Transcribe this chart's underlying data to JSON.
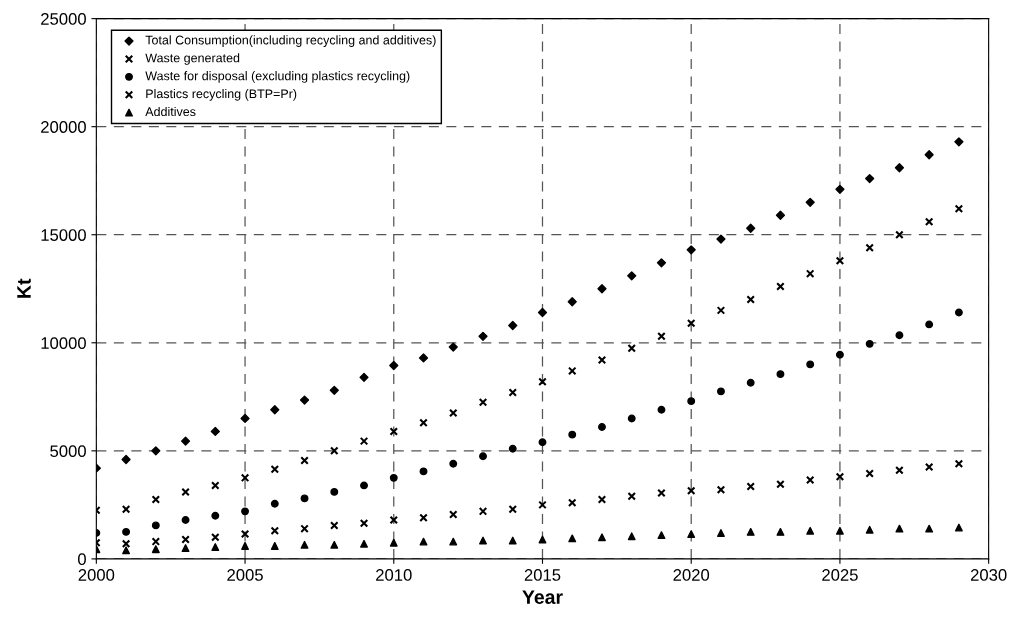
{
  "chart_data": {
    "type": "scatter",
    "xlabel": "Year",
    "ylabel": "Kt",
    "xlim": [
      2000,
      2030
    ],
    "xticks": [
      2000,
      2005,
      2010,
      2015,
      2020,
      2025,
      2030
    ],
    "ylim": [
      0,
      25000
    ],
    "yticks": [
      0,
      5000,
      10000,
      15000,
      20000,
      25000
    ],
    "grid": true,
    "line_style": "dashed",
    "legend": "top left",
    "x": [
      2000,
      2001,
      2002,
      2003,
      2004,
      2005,
      2006,
      2007,
      2008,
      2009,
      2010,
      2011,
      2012,
      2013,
      2014,
      2015,
      2016,
      2017,
      2018,
      2019,
      2020,
      2021,
      2022,
      2023,
      2024,
      2025,
      2026,
      2027,
      2028,
      2029
    ],
    "series": [
      {
        "name": "Total Consumption(including recycling and additives)",
        "color": "#000000",
        "marker": "diamond",
        "values": [
          4200,
          4600,
          5000,
          5450,
          5900,
          6500,
          6900,
          7350,
          7800,
          8400,
          8950,
          9300,
          9800,
          10300,
          10800,
          11400,
          11900,
          12500,
          13100,
          13700,
          14300,
          14800,
          15300,
          15900,
          16500,
          17100,
          17600,
          18100,
          18700,
          19300
        ]
      },
      {
        "name": "Waste generated",
        "color": "#000000",
        "marker": "cross",
        "values": [
          2250,
          2300,
          2750,
          3100,
          3400,
          3750,
          4150,
          4550,
          5000,
          5450,
          5900,
          6300,
          6750,
          7250,
          7700,
          8200,
          8700,
          9200,
          9750,
          10300,
          10900,
          11500,
          12000,
          12600,
          13200,
          13800,
          14400,
          15000,
          15600,
          16200
        ]
      },
      {
        "name": "Waste for disposal (excluding plastics recycling)",
        "color": "#000000",
        "marker": "circle",
        "values": [
          1200,
          1250,
          1550,
          1800,
          2000,
          2200,
          2550,
          2800,
          3100,
          3400,
          3750,
          4050,
          4400,
          4750,
          5100,
          5400,
          5750,
          6100,
          6500,
          6900,
          7300,
          7750,
          8150,
          8550,
          9000,
          9450,
          9950,
          10350,
          10850,
          11400
        ]
      },
      {
        "name": "Plastics recycling (BTP=Pr)",
        "color": "#000000",
        "marker": "cross",
        "values": [
          750,
          700,
          800,
          900,
          1000,
          1150,
          1300,
          1400,
          1550,
          1650,
          1800,
          1900,
          2050,
          2200,
          2300,
          2500,
          2600,
          2750,
          2900,
          3050,
          3150,
          3200,
          3350,
          3450,
          3650,
          3800,
          3950,
          4100,
          4250,
          4400
        ]
      },
      {
        "name": "Additives",
        "color": "#000000",
        "marker": "triangle",
        "values": [
          450,
          400,
          450,
          500,
          550,
          600,
          600,
          650,
          650,
          700,
          750,
          800,
          800,
          850,
          850,
          900,
          950,
          1000,
          1050,
          1100,
          1150,
          1200,
          1250,
          1250,
          1300,
          1300,
          1350,
          1400,
          1400,
          1450
        ]
      }
    ]
  }
}
